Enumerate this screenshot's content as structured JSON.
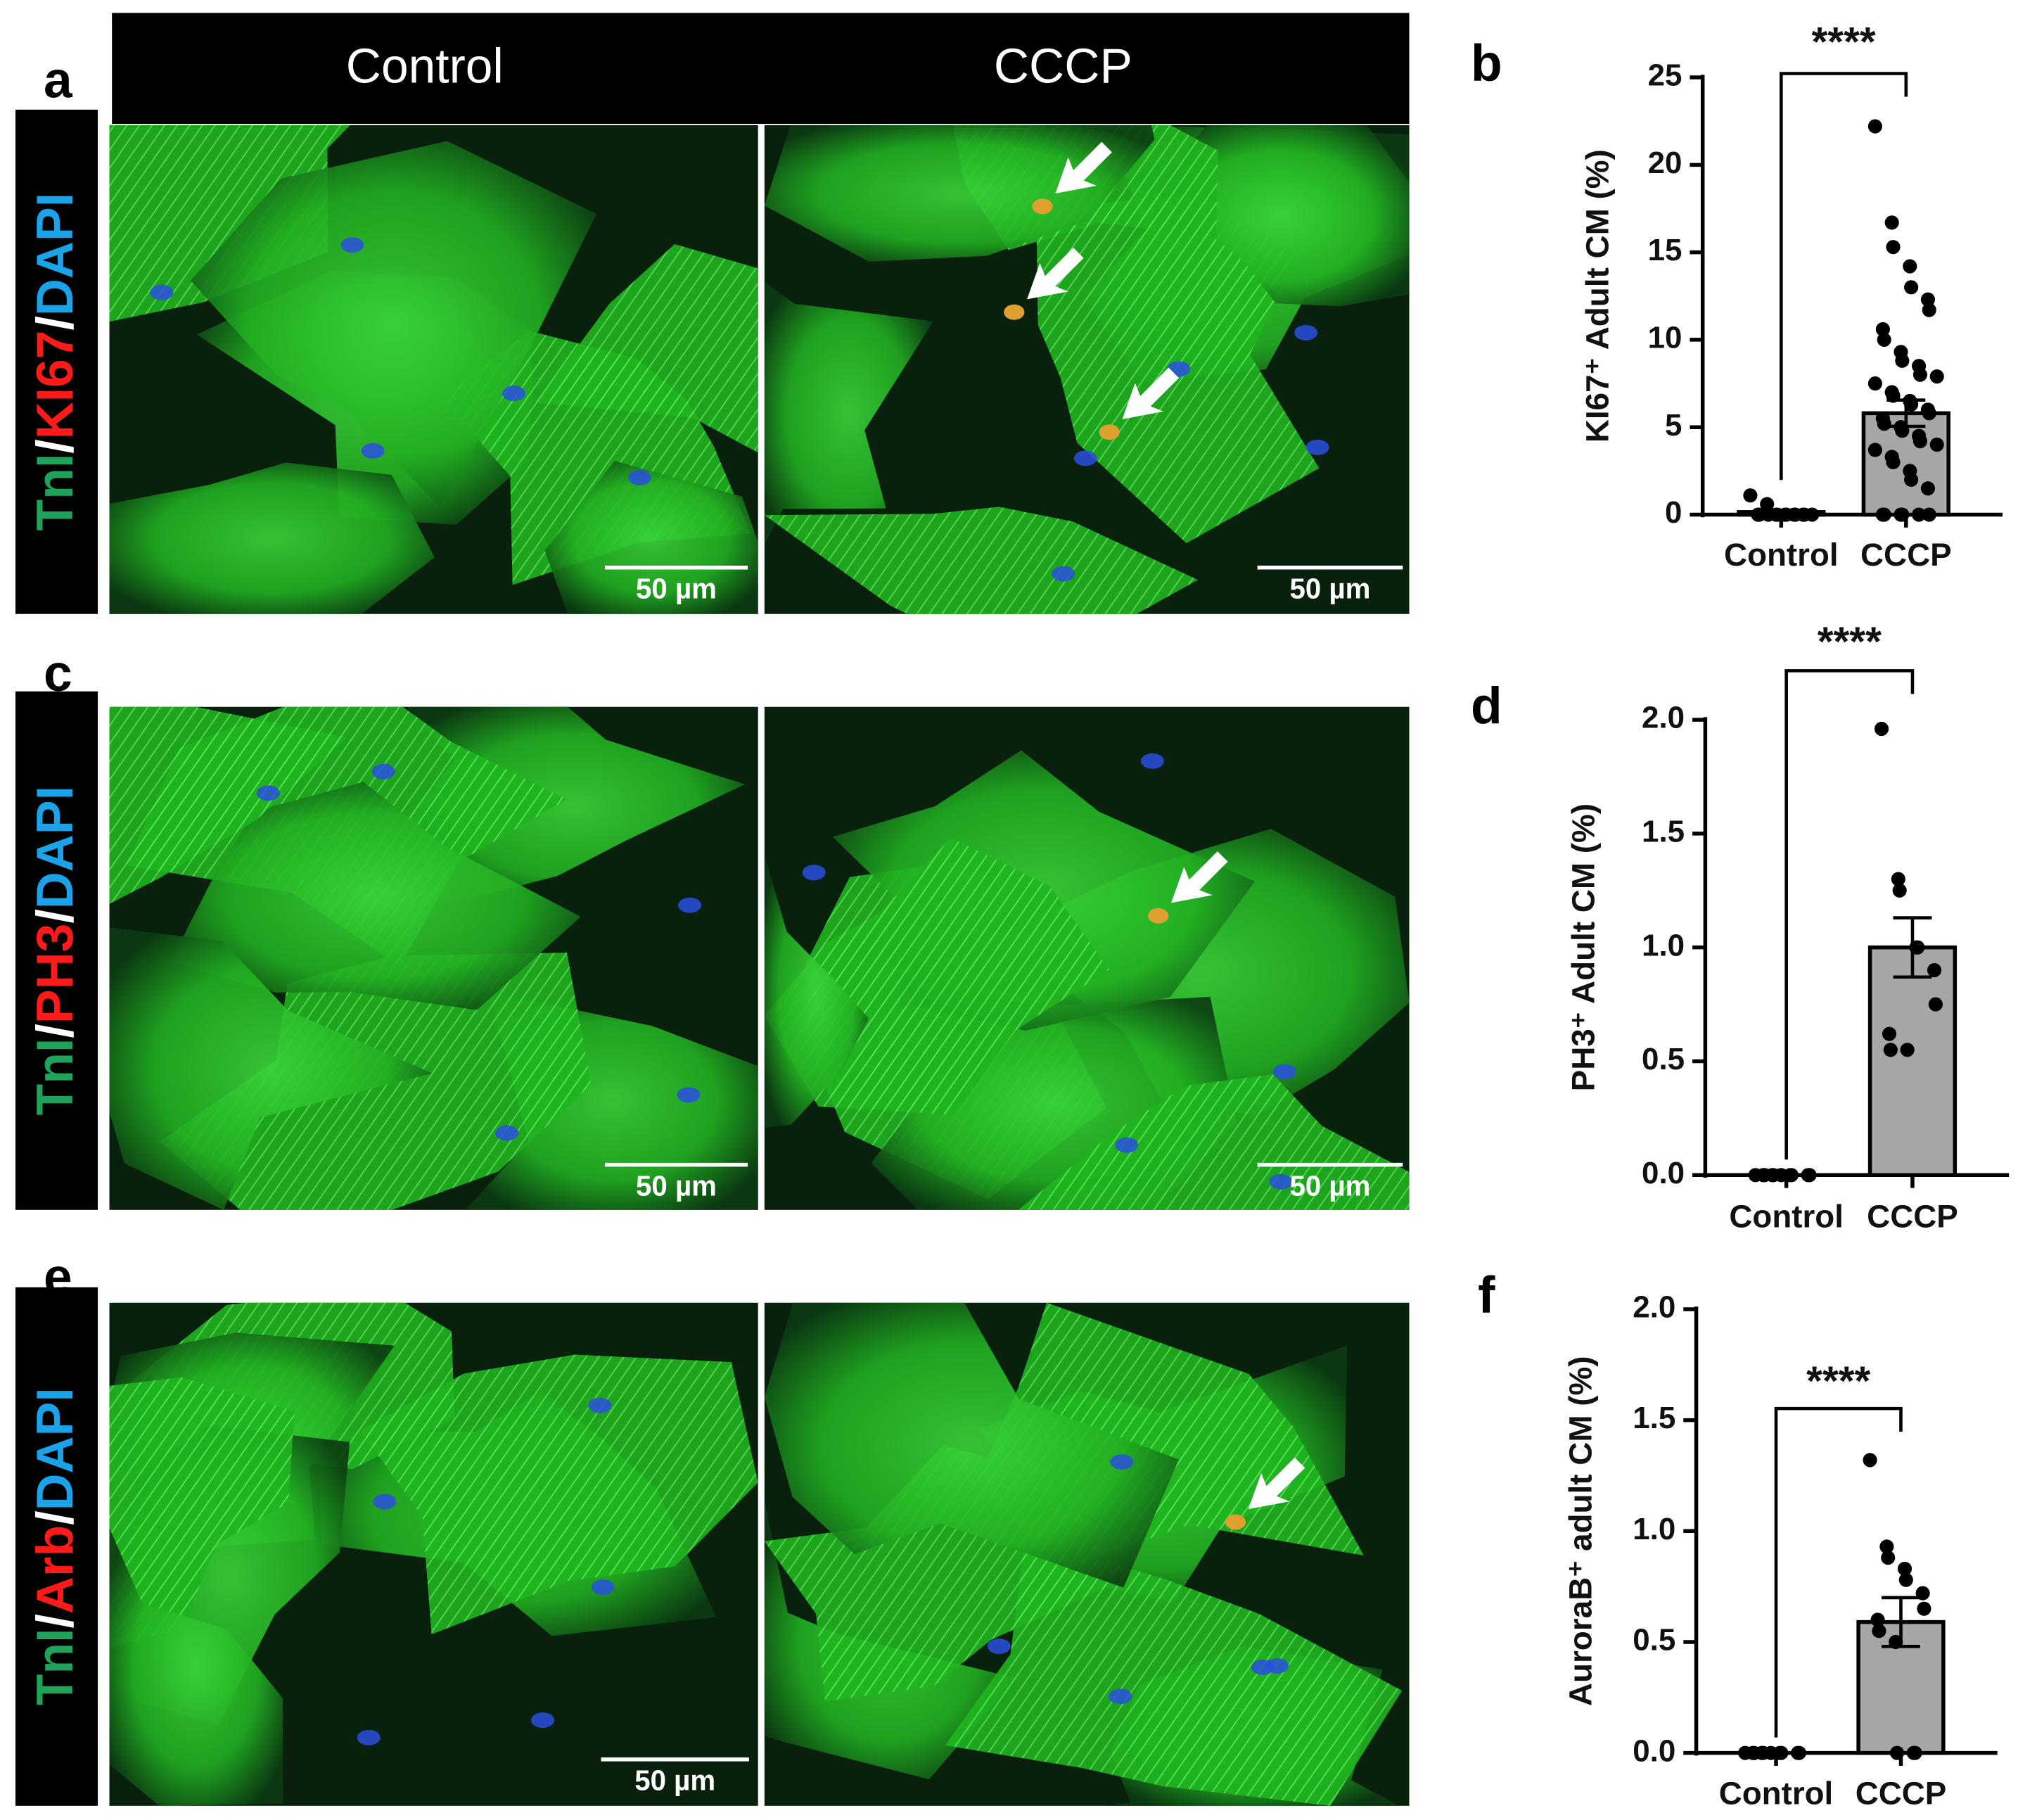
{
  "figure": {
    "column_headers": [
      "Control",
      "CCCP"
    ],
    "rows": [
      {
        "letter": "a",
        "stain": [
          {
            "text": "TnI",
            "color": "#1fa35a"
          },
          {
            "text": "/",
            "color": "#ffffff"
          },
          {
            "text": "KI67",
            "color": "#ff1a1a"
          },
          {
            "text": "/",
            "color": "#ffffff"
          },
          {
            "text": "DAPI",
            "color": "#1aa3e8"
          }
        ],
        "scale_bars": [
          "50 µm",
          "50 µm"
        ]
      },
      {
        "letter": "c",
        "stain": [
          {
            "text": "TnI",
            "color": "#1fa35a"
          },
          {
            "text": "/",
            "color": "#ffffff"
          },
          {
            "text": "PH3",
            "color": "#ff1a1a"
          },
          {
            "text": "/",
            "color": "#ffffff"
          },
          {
            "text": "DAPI",
            "color": "#1aa3e8"
          }
        ],
        "scale_bars": [
          "50 µm",
          "50 µm"
        ]
      },
      {
        "letter": "e",
        "stain": [
          {
            "text": "TnI",
            "color": "#1fa35a"
          },
          {
            "text": "/",
            "color": "#ffffff"
          },
          {
            "text": "Arb",
            "color": "#ff1a1a"
          },
          {
            "text": "/",
            "color": "#ffffff"
          },
          {
            "text": "DAPI",
            "color": "#1aa3e8"
          }
        ],
        "scale_bars": [
          "50 µm"
        ]
      }
    ]
  },
  "chart_data": [
    {
      "type": "bar",
      "panel": "b",
      "y_label": "KI67⁺ Adult CM (%)",
      "categories": [
        "Control",
        "CCCP"
      ],
      "values": [
        0.15,
        5.8
      ],
      "errors": [
        0.08,
        0.75
      ],
      "color": "#a6a6a6",
      "significance": "****",
      "points": [
        [
          1.1,
          0.6,
          0,
          0,
          0,
          0,
          0,
          0,
          0,
          0,
          0,
          0,
          0,
          0
        ],
        [
          22.2,
          16.7,
          15.3,
          14.2,
          13.0,
          12.3,
          11.7,
          10.6,
          10.0,
          9.3,
          8.8,
          8.5,
          8.0,
          7.9,
          7.5,
          7.0,
          6.8,
          6.5,
          6.3,
          6.0,
          5.8,
          5.5,
          5.2,
          5.0,
          4.8,
          4.5,
          4.2,
          4.0,
          3.7,
          3.3,
          3.0,
          2.5,
          2.0,
          1.5,
          0,
          0,
          0,
          0,
          0,
          0
        ]
      ],
      "ylim": [
        0,
        25
      ],
      "yticks": [
        0,
        5,
        10,
        15,
        20,
        25
      ]
    },
    {
      "type": "bar",
      "panel": "d",
      "y_label": "PH3⁺ Adult CM (%)",
      "categories": [
        "Control",
        "CCCP"
      ],
      "values": [
        0,
        1.0
      ],
      "errors": [
        0,
        0.13
      ],
      "color": "#a6a6a6",
      "significance": "****",
      "points": [
        [
          0,
          0,
          0,
          0,
          0,
          0,
          0,
          0,
          0,
          0
        ],
        [
          1.96,
          1.3,
          1.25,
          1.0,
          1.0,
          0.9,
          0.75,
          0.62,
          0.55,
          0.55
        ]
      ],
      "ylim": [
        0,
        2
      ],
      "yticks": [
        {
          "value": 0,
          "label": "0.0"
        },
        0.5,
        {
          "value": 1,
          "label": "1.0"
        },
        1.5,
        {
          "value": 2,
          "label": "2.0"
        }
      ]
    },
    {
      "type": "bar",
      "panel": "f",
      "y_label": "AuroraB⁺ adult CM (%)",
      "categories": [
        "Control",
        "CCCP"
      ],
      "values": [
        0,
        0.59
      ],
      "errors": [
        0,
        0.11
      ],
      "color": "#a6a6a6",
      "significance": "****",
      "points": [
        [
          0,
          0,
          0,
          0,
          0,
          0,
          0,
          0,
          0,
          0
        ],
        [
          1.32,
          0.93,
          0.88,
          0.83,
          0.78,
          0.72,
          0.65,
          0.6,
          0.55,
          0.5,
          0,
          0,
          0
        ]
      ],
      "ylim": [
        0,
        2
      ],
      "yticks": [
        {
          "value": 0,
          "label": "0.0"
        },
        0.5,
        {
          "value": 1,
          "label": "1.0"
        },
        1.5,
        {
          "value": 2,
          "label": "2.0"
        }
      ]
    }
  ]
}
